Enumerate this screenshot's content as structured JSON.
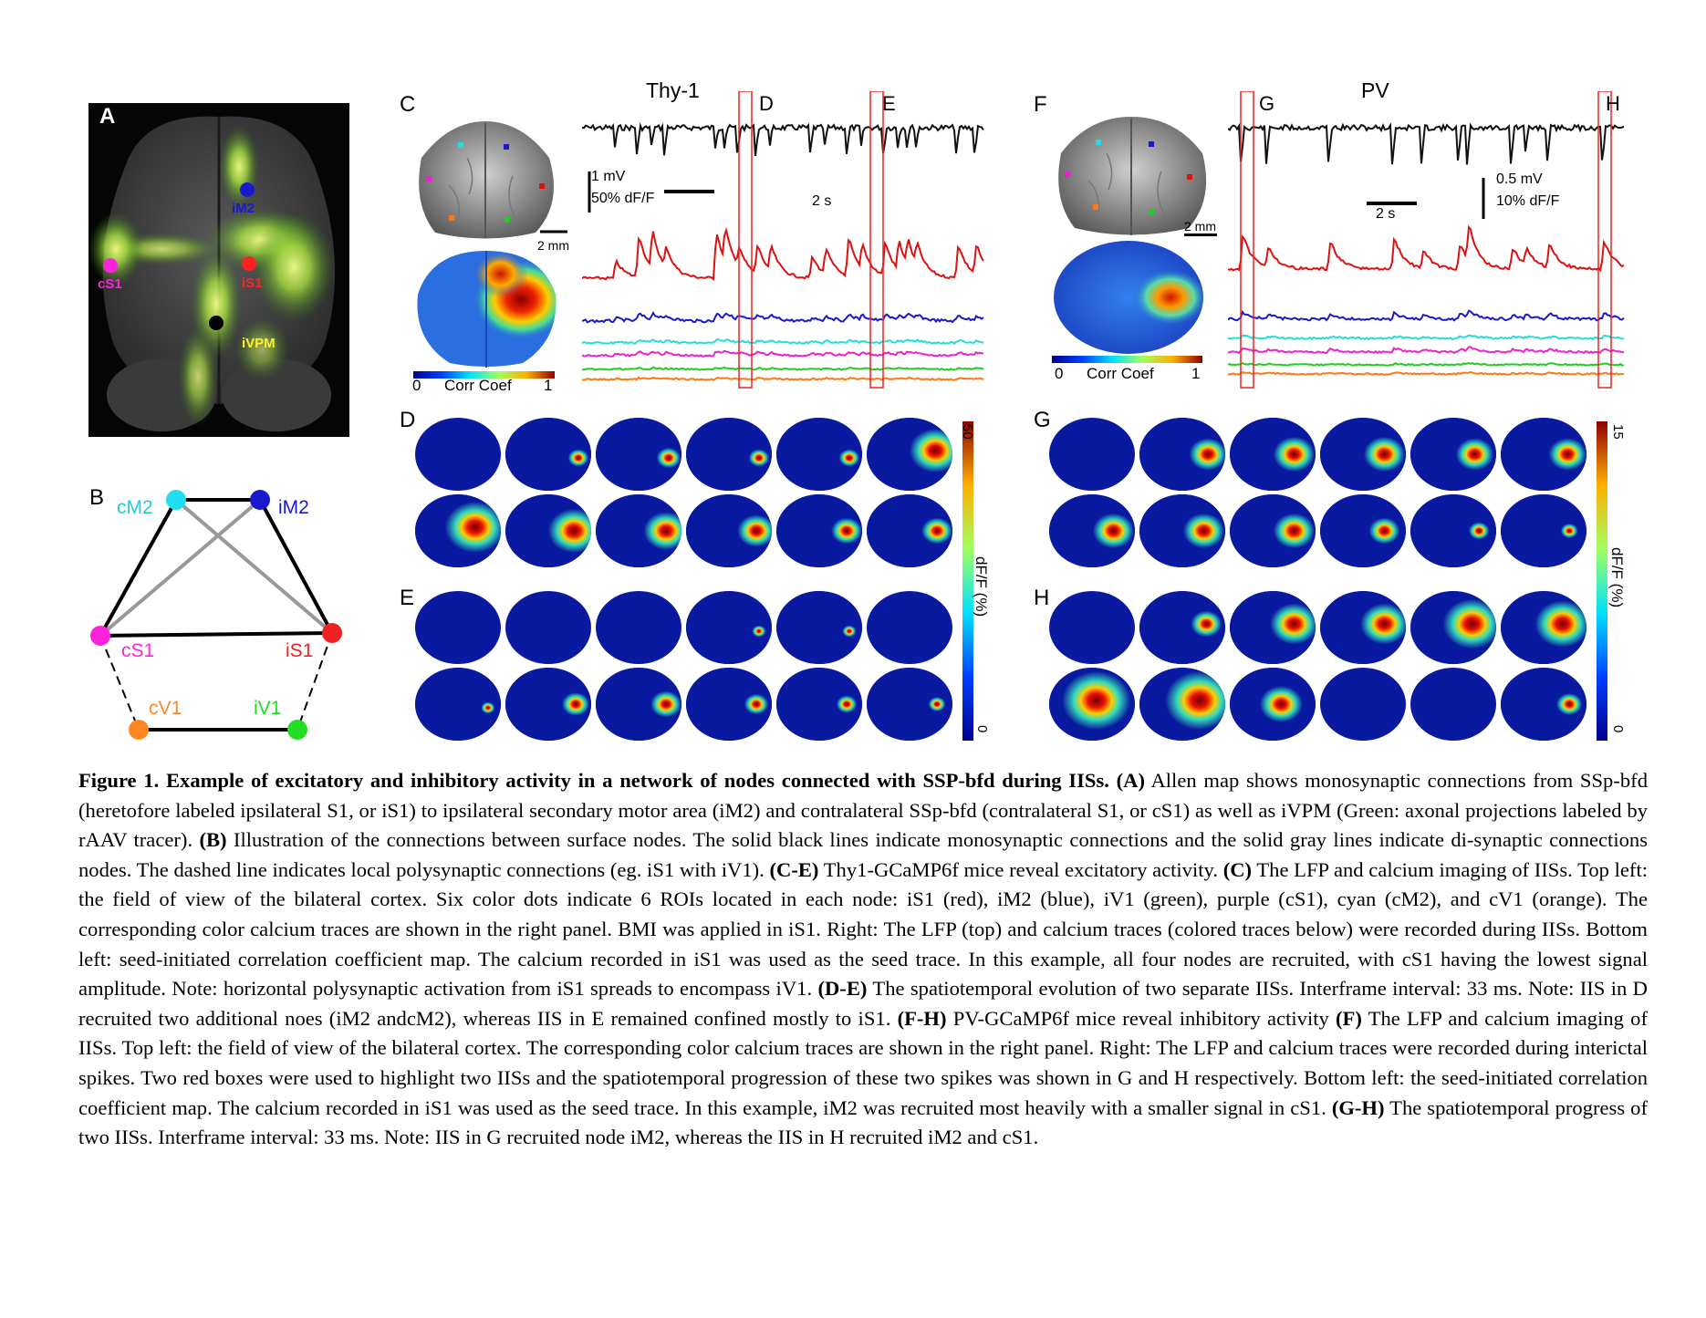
{
  "panels": {
    "A": {
      "label": "A",
      "nodes": [
        {
          "name": "iM2",
          "color": "#1a1acc",
          "text_color": "#1a1acc"
        },
        {
          "name": "cS1",
          "color": "#ff22dd",
          "text_color": "#ff22dd"
        },
        {
          "name": "iS1",
          "color": "#ff2222",
          "text_color": "#ff2222"
        },
        {
          "name": "iVPM",
          "color": "#000000",
          "text_color": "#ffee33"
        }
      ]
    },
    "B": {
      "label": "B",
      "nodes": [
        {
          "name": "cM2",
          "color": "#22ddee"
        },
        {
          "name": "iM2",
          "color": "#1a1acc"
        },
        {
          "name": "cS1",
          "color": "#ff22dd"
        },
        {
          "name": "iS1",
          "color": "#ee2222"
        },
        {
          "name": "cV1",
          "color": "#ff8822"
        },
        {
          "name": "iV1",
          "color": "#22dd22"
        }
      ]
    },
    "C": {
      "label": "C",
      "title": "Thy-1",
      "box_labels": [
        "D",
        "E"
      ],
      "scale_mv": "1 mV",
      "scale_dff": "50% dF/F",
      "scale_time": "2 s",
      "scale_mm": "2 mm",
      "corr_min": "0",
      "corr_label": "Corr Coef",
      "corr_max": "1"
    },
    "F": {
      "label": "F",
      "title": "PV",
      "box_labels": [
        "G",
        "H"
      ],
      "scale_mv": "0.5 mV",
      "scale_dff": "10% dF/F",
      "scale_time": "2 s",
      "scale_mm": "2 mm",
      "corr_min": "0",
      "corr_label": "Corr Coef",
      "corr_max": "1"
    },
    "D": {
      "label": "D"
    },
    "E": {
      "label": "E"
    },
    "G": {
      "label": "G"
    },
    "H": {
      "label": "H"
    },
    "colorbar_left": {
      "max": "50",
      "min": "0",
      "label": "dF/F (%)"
    },
    "colorbar_right": {
      "max": "15",
      "min": "0",
      "label": "dF/F (%)"
    }
  },
  "trace_colors": [
    "#111111",
    "#dd1111",
    "#1a1acc",
    "#22dddd",
    "#ee22cc",
    "#22cc22",
    "#ff7711"
  ],
  "caption": {
    "title": "Figure 1. Example of excitatory and inhibitory activity in a network of nodes connected with SSP-bfd during IISs.",
    "segments": [
      {
        "bold": "(A)",
        "text": " Allen map shows monosynaptic connections from SSp-bfd (heretofore labeled ipsilateral S1, or iS1) to ipsilateral secondary motor area (iM2) and contralateral SSp-bfd (contralateral S1, or cS1) as well as iVPM (Green: axonal projections labeled by rAAV tracer). "
      },
      {
        "bold": "(B)",
        "text": " Illustration of the connections between surface nodes. The solid black lines indicate monosynaptic connections and the solid gray lines indicate di-synaptic connections nodes. The dashed line indicates local polysynaptic connections (eg. iS1 with iV1). "
      },
      {
        "bold": "(C-E)",
        "text": " Thy1-GCaMP6f mice reveal excitatory activity. "
      },
      {
        "bold": "(C)",
        "text": " The LFP and calcium imaging of IISs. Top left: the field of view of the bilateral cortex. Six color dots indicate 6 ROIs located in each node: iS1 (red), iM2 (blue), iV1 (green), purple (cS1), cyan (cM2), and cV1 (orange). The corresponding color calcium traces are shown in the right panel. BMI was applied in iS1. Right: The LFP (top) and calcium traces (colored traces below) were recorded during IISs.  Bottom left: seed-initiated correlation coefficient map. The calcium recorded in iS1 was used as the seed trace. In this example, all four nodes are recruited, with cS1 having the lowest signal amplitude. Note: horizontal polysynaptic activation from iS1 spreads to encompass iV1. "
      },
      {
        "bold": "(D-E)",
        "text": " The spatiotemporal evolution of two separate IISs. Interframe interval: 33 ms. Note: IIS in D recruited two additional noes (iM2 andcM2), whereas IIS in E remained confined mostly to iS1. "
      },
      {
        "bold": "(F-H)",
        "text": " PV-GCaMP6f mice reveal inhibitory activity "
      },
      {
        "bold": "(F)",
        "text": " The LFP and calcium imaging of IISs. Top left: the field of view of the bilateral cortex. The corresponding color calcium traces are shown in the right panel. Right: The LFP and calcium traces were recorded during interictal spikes. Two red boxes were used to highlight two IISs and the spatiotemporal progression of these two spikes was shown in G and H respectively.  Bottom left: the seed-initiated correlation coefficient map. The calcium recorded in iS1 was used as the seed trace. In this example, iM2 was recruited most heavily with a smaller signal in cS1.  "
      },
      {
        "bold": "(G-H)",
        "text": " The spatiotemporal progress of two IISs. Interframe interval: 33 ms. Note: IIS in G recruited node iM2, whereas the IIS in H recruited iM2 and cS1."
      }
    ]
  }
}
